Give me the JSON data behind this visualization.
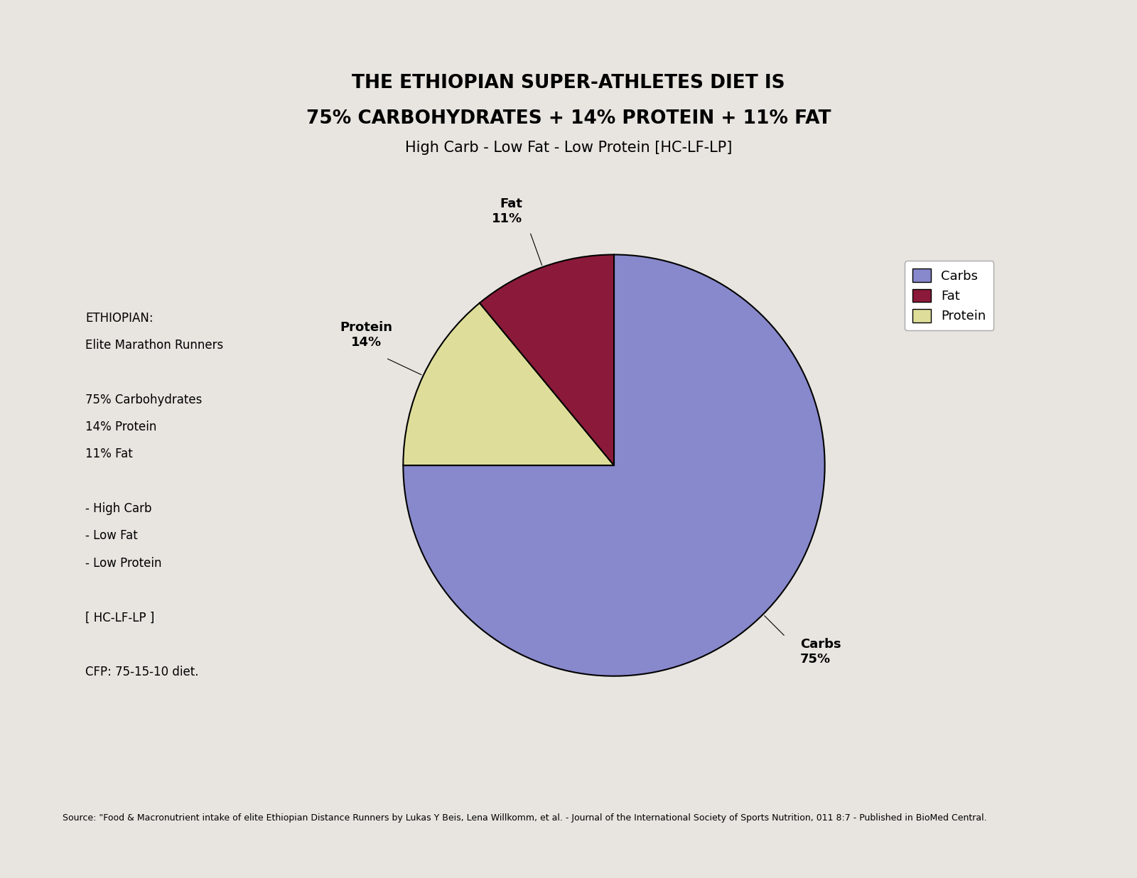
{
  "title_line1": "THE ETHIOPIAN SUPER-ATHLETES DIET IS",
  "title_line2": "75% CARBOHYDRATES + 14% PROTEIN + 11% FAT",
  "title_line3": "High Carb - Low Fat - Low Protein [HC-LF-LP]",
  "slices": [
    75,
    14,
    11
  ],
  "slice_names": [
    "Carbs",
    "Protein",
    "Fat"
  ],
  "colors": [
    "#8888cc",
    "#dede9a",
    "#8b1a3a"
  ],
  "legend_labels": [
    "Carbs",
    "Fat",
    "Protein"
  ],
  "legend_colors": [
    "#8888cc",
    "#8b1a3a",
    "#dede9a"
  ],
  "left_text_line1": "ETHIOPIAN:",
  "left_text_line2": "Elite Marathon Runners",
  "left_text_line3": "75% Carbohydrates",
  "left_text_line4": "14% Protein",
  "left_text_line5": "11% Fat",
  "left_text_line6": "- High Carb",
  "left_text_line7": "- Low Fat",
  "left_text_line8": "- Low Protein",
  "left_text_line9": "[ HC-LF-LP ]",
  "left_text_line10": "CFP: 75-15-10 diet.",
  "source_text": "Source: \"Food & Macronutrient intake of elite Ethiopian Distance Runners by Lukas Y Beis, Lena Willkomm, et al. - Journal of the International Society of Sports Nutrition, 011 8:7 - Published in BioMed Central.",
  "background_color": "#e8e5e0",
  "startangle": 90
}
